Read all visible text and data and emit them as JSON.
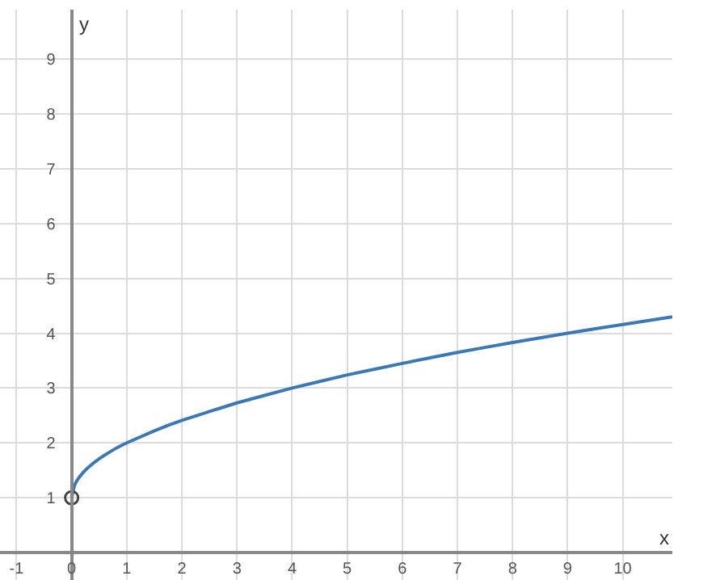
{
  "chart_data": {
    "type": "line",
    "xlabel": "x",
    "ylabel": "y",
    "xlim": [
      -1.3,
      10.9
    ],
    "ylim": [
      -0.5,
      9.9
    ],
    "xticks": [
      -1,
      0,
      1,
      2,
      3,
      4,
      5,
      6,
      7,
      8,
      9,
      10
    ],
    "yticks": [
      1,
      2,
      3,
      4,
      5,
      6,
      7,
      8,
      9
    ],
    "grid": true,
    "series": [
      {
        "color": "#3a78b8",
        "marker": "none",
        "x": [
          0,
          0.05,
          0.1,
          0.2,
          0.3,
          0.5,
          0.75,
          1,
          1.5,
          2,
          3,
          4,
          5,
          6,
          7,
          8,
          9,
          10,
          10.9
        ],
        "values": [
          1,
          1.22,
          1.32,
          1.45,
          1.55,
          1.71,
          1.87,
          2,
          2.22,
          2.41,
          2.73,
          3,
          3.24,
          3.45,
          3.65,
          3.83,
          4,
          4.16,
          4.3
        ]
      },
      {
        "type": "scatter",
        "color": "#444444",
        "marker": "circle",
        "x": [
          0
        ],
        "values": [
          1
        ]
      }
    ]
  }
}
